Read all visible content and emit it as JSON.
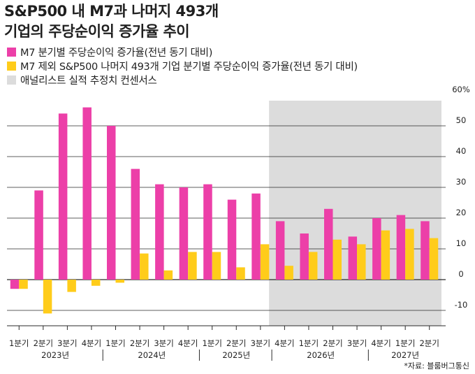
{
  "title": {
    "line1": "S&P500 내 M7과 나머지 493개",
    "line2": "기업의 주당순이익 증가율 추이"
  },
  "legend": {
    "m7": "M7 분기별 주당순이익 증가율(전년 동기 대비)",
    "rest": "M7 제외 S&P500 나머지 493개 기업 분기별 주당순이익 증가율(전년 동기 대비)",
    "estimate": "애널리스트 실적 추정치 컨센서스"
  },
  "source": "*자료: 블룸버그통신",
  "colors": {
    "m7": "#ec3fa8",
    "rest": "#ffcc1a",
    "estimate": "#dcdcdc"
  },
  "chart_data": {
    "type": "bar",
    "quarter_labels": [
      "1분기",
      "2분기",
      "3분기",
      "4분기",
      "1분기",
      "2분기",
      "3분기",
      "4분기",
      "1분기",
      "2분기",
      "3분기",
      "4분기",
      "1분기",
      "2분기",
      "3분기",
      "4분기",
      "1분기",
      "2분기"
    ],
    "year_labels": [
      "2023년",
      "2024년",
      "2025년",
      "2026년",
      "2027년"
    ],
    "series": [
      {
        "name": "M7",
        "values": [
          -3,
          29,
          54,
          56,
          50,
          36,
          31,
          30,
          31,
          26,
          28,
          19,
          15,
          23,
          14,
          20,
          21,
          19
        ]
      },
      {
        "name": "나머지 493개",
        "values": [
          -3,
          -11,
          -4,
          -2,
          -1,
          8.5,
          3,
          9,
          9,
          4,
          11.5,
          4.5,
          9,
          13,
          11.5,
          16,
          16.5,
          13.5
        ]
      }
    ],
    "estimate_start_index": 11,
    "y_ticks": [
      "60%",
      "50",
      "40",
      "30",
      "20",
      "10",
      "0",
      "-10"
    ],
    "ylim": [
      -15,
      60
    ]
  }
}
